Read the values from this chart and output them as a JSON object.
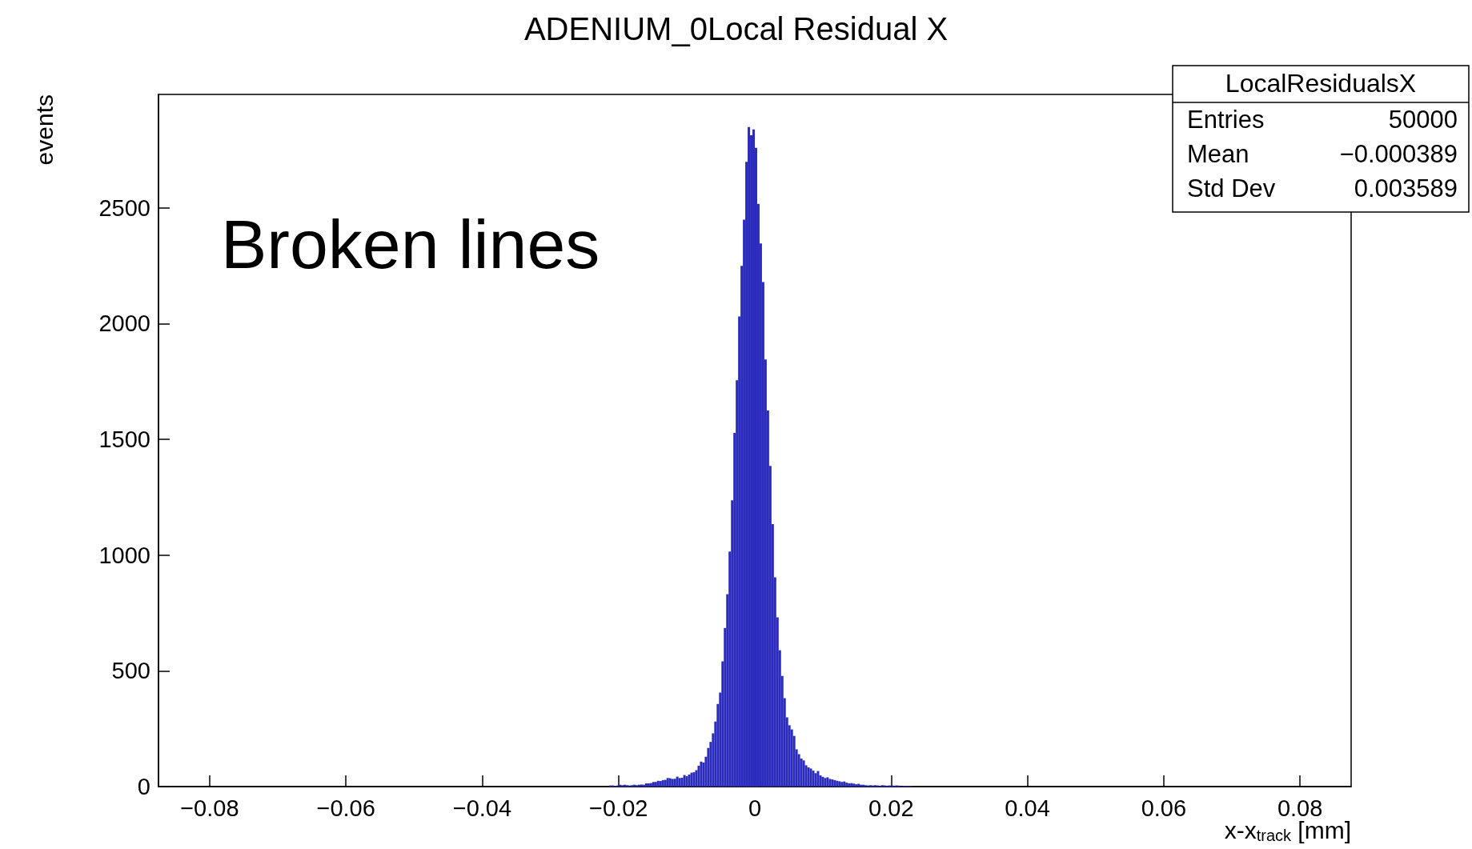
{
  "chart_data": {
    "type": "histogram",
    "title": "ADENIUM_0Local Residual X",
    "xlabel": "x-x$_{track}$ [mm]",
    "ylabel": "events",
    "annotations": [
      "Broken lines",
      "LocalResidualsX",
      "Entries",
      "50000",
      "Mean",
      "−0.000389",
      "Std Dev",
      "0.003589"
    ],
    "color": "#2b2bbd",
    "xlim": [
      -0.0875,
      0.0875
    ],
    "ylim": [
      0,
      2990
    ],
    "xticks": [
      {
        "value": -0.08,
        "label": "−0.08"
      },
      {
        "value": -0.06,
        "label": "−0.06"
      },
      {
        "value": -0.04,
        "label": "−0.04"
      },
      {
        "value": -0.02,
        "label": "−0.02"
      },
      0,
      0.02,
      0.04,
      0.06,
      0.08
    ],
    "yticks": [
      0,
      500,
      1000,
      1500,
      2000,
      2500
    ],
    "bins": [
      -0.02135,
      -0.021,
      -0.02065,
      -0.0203,
      -0.01995,
      -0.0196,
      -0.01925,
      -0.0189,
      -0.01855,
      -0.0182,
      -0.01785,
      -0.0175,
      -0.01715,
      -0.0168,
      -0.01645,
      -0.0161,
      -0.01575,
      -0.0154,
      -0.01505,
      -0.0147,
      -0.01435,
      -0.014,
      -0.01365,
      -0.0133,
      -0.01295,
      -0.0126,
      -0.01225,
      -0.0119,
      -0.01155,
      -0.0112,
      -0.01085,
      -0.0105,
      -0.01015,
      -0.0098,
      -0.00945,
      -0.0091,
      -0.00875,
      -0.0084,
      -0.00805,
      -0.0077,
      -0.00735,
      -0.007,
      -0.00665,
      -0.0063,
      -0.00595,
      -0.0056,
      -0.00525,
      -0.0049,
      -0.00455,
      -0.0042,
      -0.00385,
      -0.0035,
      -0.00315,
      -0.0028,
      -0.00245,
      -0.0021,
      -0.00175,
      -0.0014,
      -0.00105,
      -0.0007,
      -0.00035,
      0,
      0.00035,
      0.0007,
      0.00105,
      0.0014,
      0.00175,
      0.0021,
      0.00245,
      0.0028,
      0.00315,
      0.0035,
      0.00385,
      0.0042,
      0.00455,
      0.0049,
      0.00525,
      0.0056,
      0.00595,
      0.0063,
      0.00665,
      0.007,
      0.00735,
      0.0077,
      0.00805,
      0.0084,
      0.00875,
      0.0091,
      0.00945,
      0.0098,
      0.01015,
      0.0105,
      0.01085,
      0.0112,
      0.01155,
      0.0119,
      0.01225,
      0.0126,
      0.01295,
      0.0133,
      0.01365,
      0.014,
      0.01435,
      0.0147,
      0.01505,
      0.0154,
      0.01575,
      0.0161,
      0.01645,
      0.0168,
      0.01715,
      0.0175,
      0.01785,
      0.0182,
      0.01855,
      0.0189,
      0.01925,
      0.0196,
      0.01995,
      0.0203,
      0.02065,
      0.021,
      0.02135,
      0.0217,
      0.02205,
      0.0224,
      0.02275,
      0.0231
    ],
    "values": [
      5,
      5,
      3,
      5,
      8,
      6,
      8,
      6,
      5,
      6,
      8,
      6,
      8,
      9,
      8,
      14,
      14,
      15,
      20,
      20,
      25,
      24,
      28,
      29,
      37,
      36,
      33,
      34,
      43,
      37,
      38,
      50,
      45,
      52,
      60,
      62,
      71,
      90,
      108,
      104,
      129,
      167,
      193,
      230,
      281,
      357,
      406,
      541,
      685,
      831,
      1015,
      1237,
      1528,
      1755,
      2031,
      2249,
      2449,
      2699,
      2849,
      2814,
      2839,
      2759,
      2517,
      2346,
      2179,
      1845,
      1625,
      1385,
      1134,
      904,
      731,
      589,
      478,
      382,
      299,
      265,
      247,
      219,
      161,
      140,
      121,
      113,
      92,
      83,
      78,
      69,
      58,
      67,
      48,
      42,
      37,
      40,
      33,
      31,
      28,
      25,
      23,
      20,
      22,
      17,
      14,
      15,
      13,
      10,
      12,
      8,
      8,
      6,
      5,
      6,
      5,
      6,
      5,
      4,
      6,
      5,
      4,
      5,
      5,
      4,
      5,
      4,
      0,
      3,
      3,
      3,
      3
    ]
  }
}
